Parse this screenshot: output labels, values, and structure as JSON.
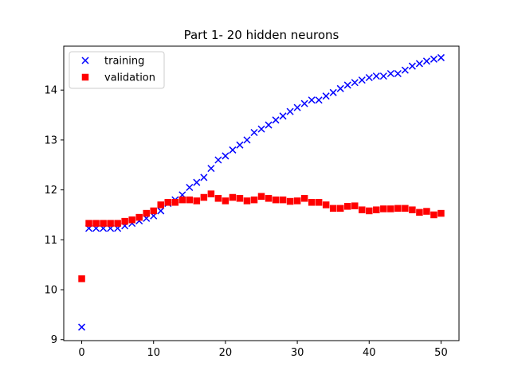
{
  "chart_data": {
    "type": "scatter",
    "title": "Part 1- 20 hidden neurons",
    "xlabel": "",
    "ylabel": "",
    "xlim": [
      -2.5,
      52.5
    ],
    "ylim": [
      8.98,
      14.88
    ],
    "x_ticks": [
      0,
      10,
      20,
      30,
      40,
      50
    ],
    "y_ticks": [
      9,
      10,
      11,
      12,
      13,
      14
    ],
    "grid": false,
    "legend": "upper left",
    "x": [
      0,
      1,
      2,
      3,
      4,
      5,
      6,
      7,
      8,
      9,
      10,
      11,
      12,
      13,
      14,
      15,
      16,
      17,
      18,
      19,
      20,
      21,
      22,
      23,
      24,
      25,
      26,
      27,
      28,
      29,
      30,
      31,
      32,
      33,
      34,
      35,
      36,
      37,
      38,
      39,
      40,
      41,
      42,
      43,
      44,
      45,
      46,
      47,
      48,
      49,
      50
    ],
    "series": [
      {
        "name": "training",
        "marker": "x",
        "color": "#0000ff",
        "values": [
          9.25,
          11.23,
          11.23,
          11.23,
          11.23,
          11.23,
          11.28,
          11.33,
          11.38,
          11.43,
          11.48,
          11.58,
          11.73,
          11.8,
          11.9,
          12.05,
          12.15,
          12.25,
          12.43,
          12.6,
          12.68,
          12.8,
          12.9,
          13.0,
          13.15,
          13.22,
          13.3,
          13.4,
          13.48,
          13.57,
          13.65,
          13.73,
          13.8,
          13.8,
          13.88,
          13.95,
          14.03,
          14.1,
          14.15,
          14.2,
          14.25,
          14.28,
          14.28,
          14.33,
          14.33,
          14.4,
          14.48,
          14.53,
          14.58,
          14.62,
          14.65
        ]
      },
      {
        "name": "validation",
        "marker": "s",
        "color": "#ff0000",
        "values": [
          10.22,
          11.33,
          11.33,
          11.33,
          11.33,
          11.33,
          11.37,
          11.4,
          11.45,
          11.53,
          11.58,
          11.7,
          11.75,
          11.75,
          11.8,
          11.8,
          11.78,
          11.85,
          11.92,
          11.83,
          11.78,
          11.85,
          11.83,
          11.78,
          11.8,
          11.87,
          11.83,
          11.8,
          11.8,
          11.77,
          11.78,
          11.83,
          11.75,
          11.75,
          11.7,
          11.63,
          11.63,
          11.67,
          11.68,
          11.6,
          11.58,
          11.6,
          11.62,
          11.62,
          11.63,
          11.63,
          11.6,
          11.55,
          11.57,
          11.5,
          11.53
        ]
      }
    ]
  }
}
